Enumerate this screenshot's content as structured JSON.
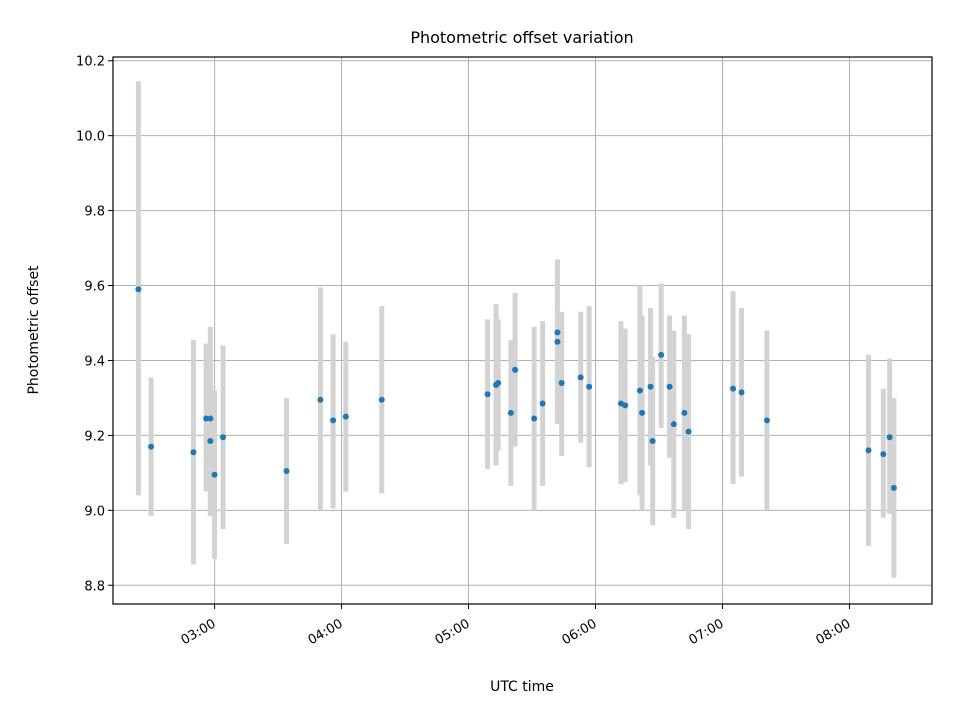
{
  "chart_data": {
    "type": "scatter",
    "title": "Photometric offset variation",
    "xlabel": "UTC time",
    "ylabel": "Photometric offset",
    "x_unit": "UTC time (HH:MM)",
    "xlim": [
      "02:12",
      "08:39"
    ],
    "ylim": [
      8.75,
      10.21
    ],
    "grid": true,
    "xticks": [
      "03:00",
      "04:00",
      "05:00",
      "06:00",
      "07:00",
      "08:00"
    ],
    "yticks": [
      "8.8",
      "9.0",
      "9.2",
      "9.4",
      "9.6",
      "9.8",
      "10.0",
      "10.2"
    ],
    "colors": {
      "point": "#1f77b4",
      "errorbar": "#d3d3d3",
      "grid": "#b0b0b0"
    },
    "points": [
      {
        "x": "02:24",
        "y": 9.59,
        "yerr": [
          9.04,
          10.145
        ]
      },
      {
        "x": "02:30",
        "y": 9.17,
        "yerr": [
          8.985,
          9.355
        ]
      },
      {
        "x": "02:50",
        "y": 9.155,
        "yerr": [
          8.855,
          9.455
        ]
      },
      {
        "x": "02:56",
        "y": 9.245,
        "yerr": [
          9.05,
          9.445
        ]
      },
      {
        "x": "02:58",
        "y": 9.185,
        "yerr": [
          8.985,
          9.385
        ]
      },
      {
        "x": "02:58",
        "y": 9.245,
        "yerr": [
          9.0,
          9.49
        ]
      },
      {
        "x": "03:00",
        "y": 9.095,
        "yerr": [
          8.87,
          9.32
        ]
      },
      {
        "x": "03:04",
        "y": 9.195,
        "yerr": [
          8.95,
          9.44
        ]
      },
      {
        "x": "03:34",
        "y": 9.105,
        "yerr": [
          8.91,
          9.3
        ]
      },
      {
        "x": "03:50",
        "y": 9.295,
        "yerr": [
          9.0,
          9.595
        ]
      },
      {
        "x": "03:56",
        "y": 9.24,
        "yerr": [
          9.005,
          9.47
        ]
      },
      {
        "x": "04:02",
        "y": 9.25,
        "yerr": [
          9.05,
          9.45
        ]
      },
      {
        "x": "04:19",
        "y": 9.295,
        "yerr": [
          9.045,
          9.545
        ]
      },
      {
        "x": "05:09",
        "y": 9.31,
        "yerr": [
          9.11,
          9.51
        ]
      },
      {
        "x": "05:13",
        "y": 9.335,
        "yerr": [
          9.12,
          9.55
        ]
      },
      {
        "x": "05:14",
        "y": 9.34,
        "yerr": [
          9.16,
          9.51
        ]
      },
      {
        "x": "05:20",
        "y": 9.26,
        "yerr": [
          9.065,
          9.455
        ]
      },
      {
        "x": "05:22",
        "y": 9.375,
        "yerr": [
          9.17,
          9.58
        ]
      },
      {
        "x": "05:31",
        "y": 9.245,
        "yerr": [
          9.0,
          9.49
        ]
      },
      {
        "x": "05:35",
        "y": 9.285,
        "yerr": [
          9.065,
          9.505
        ]
      },
      {
        "x": "05:42",
        "y": 9.475,
        "yerr": [
          9.23,
          9.67
        ]
      },
      {
        "x": "05:42",
        "y": 9.45,
        "yerr": [
          9.26,
          9.55
        ]
      },
      {
        "x": "05:44",
        "y": 9.34,
        "yerr": [
          9.145,
          9.53
        ]
      },
      {
        "x": "05:53",
        "y": 9.355,
        "yerr": [
          9.18,
          9.53
        ]
      },
      {
        "x": "05:57",
        "y": 9.33,
        "yerr": [
          9.115,
          9.545
        ]
      },
      {
        "x": "06:12",
        "y": 9.285,
        "yerr": [
          9.07,
          9.505
        ]
      },
      {
        "x": "06:14",
        "y": 9.28,
        "yerr": [
          9.075,
          9.485
        ]
      },
      {
        "x": "06:21",
        "y": 9.32,
        "yerr": [
          9.04,
          9.6
        ]
      },
      {
        "x": "06:22",
        "y": 9.26,
        "yerr": [
          9.0,
          9.52
        ]
      },
      {
        "x": "06:26",
        "y": 9.33,
        "yerr": [
          9.12,
          9.54
        ]
      },
      {
        "x": "06:27",
        "y": 9.185,
        "yerr": [
          8.96,
          9.41
        ]
      },
      {
        "x": "06:31",
        "y": 9.415,
        "yerr": [
          9.22,
          9.605
        ]
      },
      {
        "x": "06:35",
        "y": 9.33,
        "yerr": [
          9.14,
          9.52
        ]
      },
      {
        "x": "06:37",
        "y": 9.23,
        "yerr": [
          8.98,
          9.48
        ]
      },
      {
        "x": "06:42",
        "y": 9.26,
        "yerr": [
          9.0,
          9.52
        ]
      },
      {
        "x": "06:44",
        "y": 9.21,
        "yerr": [
          8.95,
          9.47
        ]
      },
      {
        "x": "07:05",
        "y": 9.325,
        "yerr": [
          9.07,
          9.585
        ]
      },
      {
        "x": "07:09",
        "y": 9.315,
        "yerr": [
          9.09,
          9.54
        ]
      },
      {
        "x": "07:21",
        "y": 9.24,
        "yerr": [
          9.0,
          9.48
        ]
      },
      {
        "x": "08:09",
        "y": 9.16,
        "yerr": [
          8.905,
          9.415
        ]
      },
      {
        "x": "08:16",
        "y": 9.15,
        "yerr": [
          8.98,
          9.325
        ]
      },
      {
        "x": "08:19",
        "y": 9.195,
        "yerr": [
          8.99,
          9.405
        ]
      },
      {
        "x": "08:21",
        "y": 9.06,
        "yerr": [
          8.82,
          9.3
        ]
      }
    ]
  }
}
